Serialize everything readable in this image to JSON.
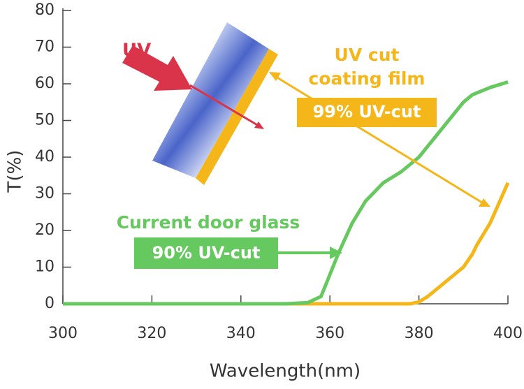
{
  "chart_data": {
    "type": "line",
    "x_label": "Wavelength(nm)",
    "y_label": "T(%)",
    "x": [
      300,
      350,
      355,
      358,
      360,
      362,
      365,
      368,
      372,
      376,
      378,
      380,
      382,
      384,
      386,
      388,
      390,
      392,
      393,
      396,
      400
    ],
    "series": [
      {
        "name": "Current door glass",
        "color": "#66c95f",
        "values": [
          0,
          0,
          0.3,
          2,
          8,
          14,
          22,
          28,
          33,
          36,
          38,
          40,
          43,
          46,
          49,
          52,
          55,
          57,
          57.5,
          59,
          60.5
        ],
        "tag": "90% UV-cut"
      },
      {
        "name": "UV cut coating film",
        "color": "#f5b619",
        "values": [
          0,
          0,
          0,
          0,
          0,
          0,
          0,
          0,
          0,
          0,
          0,
          0.5,
          2,
          4,
          6,
          8,
          10,
          13.5,
          16,
          22,
          33
        ],
        "tag": "99% UV-cut"
      }
    ],
    "uv_label": "UV",
    "xlim": [
      300,
      400
    ],
    "xticks": [
      300,
      320,
      340,
      360,
      380,
      400
    ],
    "ylim": [
      0,
      80
    ],
    "yticks": [
      0,
      10,
      20,
      30,
      40,
      50,
      60,
      70,
      80
    ]
  }
}
